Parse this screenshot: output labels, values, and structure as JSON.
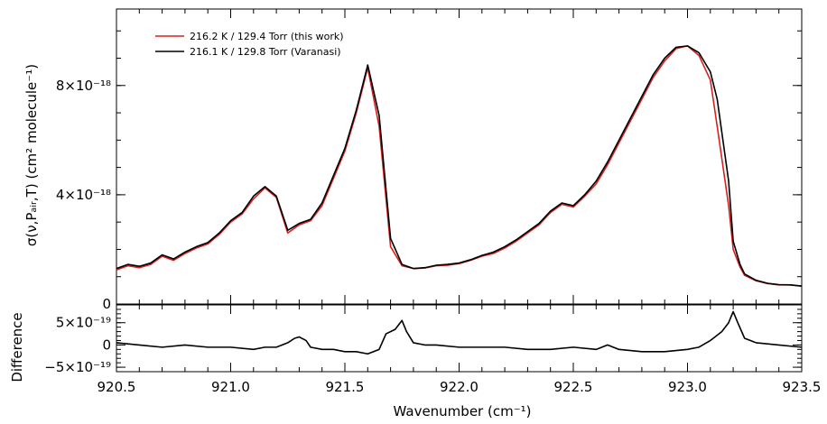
{
  "chart_data": [
    {
      "type": "line",
      "xlabel": "",
      "ylabel": "σ(ν,Pₐᵢᵣ,T)  (cm² molecule⁻¹)",
      "xlim": [
        920.5,
        923.5
      ],
      "ylim": [
        0,
        1.08e-17
      ],
      "yticks": [
        {
          "value": 0,
          "label": "0"
        },
        {
          "value": 4e-18,
          "label": "4×10⁻¹⁸"
        },
        {
          "value": 8e-18,
          "label": "8×10⁻¹⁸"
        }
      ],
      "legend_position": "top-left",
      "series": [
        {
          "name": "216.2 K / 129.4 Torr (this work)",
          "color": "#d62020",
          "x": [
            920.5,
            920.55,
            920.6,
            920.65,
            920.7,
            920.75,
            920.8,
            920.85,
            920.9,
            920.95,
            921.0,
            921.05,
            921.1,
            921.15,
            921.2,
            921.25,
            921.3,
            921.35,
            921.4,
            921.45,
            921.5,
            921.55,
            921.6,
            921.65,
            921.7,
            921.75,
            921.8,
            921.85,
            921.9,
            921.95,
            922.0,
            922.05,
            922.1,
            922.15,
            922.2,
            922.25,
            922.3,
            922.35,
            922.4,
            922.45,
            922.5,
            922.55,
            922.6,
            922.65,
            922.7,
            922.75,
            922.8,
            922.85,
            922.9,
            922.95,
            923.0,
            923.05,
            923.1,
            923.13,
            923.18,
            923.2,
            923.23,
            923.25,
            923.3,
            923.35,
            923.4,
            923.45,
            923.5
          ],
          "values": [
            1.25e-18,
            1.4e-18,
            1.33e-18,
            1.45e-18,
            1.75e-18,
            1.6e-18,
            1.85e-18,
            2.05e-18,
            2.2e-18,
            2.55e-18,
            3e-18,
            3.3e-18,
            3.85e-18,
            4.25e-18,
            3.9e-18,
            2.6e-18,
            2.9e-18,
            3.05e-18,
            3.6e-18,
            4.6e-18,
            5.6e-18,
            7e-18,
            8.65e-18,
            6.5e-18,
            2.1e-18,
            1.4e-18,
            1.3e-18,
            1.32e-18,
            1.4e-18,
            1.42e-18,
            1.48e-18,
            1.6e-18,
            1.75e-18,
            1.85e-18,
            2.05e-18,
            2.3e-18,
            2.6e-18,
            2.9e-18,
            3.35e-18,
            3.65e-18,
            3.55e-18,
            3.95e-18,
            4.4e-18,
            5.1e-18,
            5.9e-18,
            6.7e-18,
            7.5e-18,
            8.3e-18,
            8.9e-18,
            9.35e-18,
            9.45e-18,
            9.1e-18,
            8.2e-18,
            6.5e-18,
            3.6e-18,
            2e-18,
            1.35e-18,
            1.05e-18,
            8.5e-19,
            7.5e-19,
            7e-19,
            7e-19,
            6.5e-19
          ]
        },
        {
          "name": "216.1 K / 129.8 Torr (Varanasi)",
          "color": "#000000",
          "x": [
            920.5,
            920.55,
            920.6,
            920.65,
            920.7,
            920.75,
            920.8,
            920.85,
            920.9,
            920.95,
            921.0,
            921.05,
            921.1,
            921.15,
            921.2,
            921.25,
            921.3,
            921.35,
            921.4,
            921.45,
            921.5,
            921.55,
            921.6,
            921.65,
            921.7,
            921.75,
            921.8,
            921.85,
            921.9,
            921.95,
            922.0,
            922.05,
            922.1,
            922.15,
            922.2,
            922.25,
            922.3,
            922.35,
            922.4,
            922.45,
            922.5,
            922.55,
            922.6,
            922.65,
            922.7,
            922.75,
            922.8,
            922.85,
            922.9,
            922.95,
            923.0,
            923.05,
            923.1,
            923.13,
            923.18,
            923.2,
            923.23,
            923.25,
            923.3,
            923.35,
            923.4,
            923.45,
            923.5
          ],
          "values": [
            1.3e-18,
            1.45e-18,
            1.38e-18,
            1.5e-18,
            1.8e-18,
            1.65e-18,
            1.9e-18,
            2.1e-18,
            2.25e-18,
            2.6e-18,
            3.05e-18,
            3.35e-18,
            3.95e-18,
            4.3e-18,
            3.95e-18,
            2.7e-18,
            2.95e-18,
            3.1e-18,
            3.7e-18,
            4.7e-18,
            5.7e-18,
            7.1e-18,
            8.75e-18,
            6.9e-18,
            2.4e-18,
            1.45e-18,
            1.3e-18,
            1.33e-18,
            1.42e-18,
            1.45e-18,
            1.5e-18,
            1.62e-18,
            1.78e-18,
            1.9e-18,
            2.1e-18,
            2.35e-18,
            2.65e-18,
            2.95e-18,
            3.4e-18,
            3.7e-18,
            3.6e-18,
            4e-18,
            4.5e-18,
            5.2e-18,
            6e-18,
            6.8e-18,
            7.6e-18,
            8.4e-18,
            9e-18,
            9.4e-18,
            9.45e-18,
            9.2e-18,
            8.5e-18,
            7.5e-18,
            4.5e-18,
            2.3e-18,
            1.45e-18,
            1.1e-18,
            8.7e-19,
            7.6e-19,
            7.1e-19,
            7e-19,
            6.6e-19
          ]
        }
      ]
    },
    {
      "type": "line",
      "xlabel": "Wavenumber  (cm⁻¹)",
      "ylabel": "Difference",
      "xlim": [
        920.5,
        923.5
      ],
      "ylim": [
        -6e-19,
        9e-19
      ],
      "xticks": [
        {
          "value": 920.5,
          "label": "920.5"
        },
        {
          "value": 921.0,
          "label": "921.0"
        },
        {
          "value": 921.5,
          "label": "921.5"
        },
        {
          "value": 922.0,
          "label": "922.0"
        },
        {
          "value": 922.5,
          "label": "922.5"
        },
        {
          "value": 923.0,
          "label": "923.0"
        },
        {
          "value": 923.5,
          "label": "923.5"
        }
      ],
      "yticks": [
        {
          "value": 5e-19,
          "label": "5×10⁻¹⁹"
        },
        {
          "value": 0,
          "label": "0"
        },
        {
          "value": -5e-19,
          "label": "−5×10⁻¹⁹"
        }
      ],
      "series": [
        {
          "color": "#000000",
          "x": [
            920.5,
            920.6,
            920.7,
            920.8,
            920.9,
            921.0,
            921.1,
            921.15,
            921.2,
            921.25,
            921.28,
            921.3,
            921.33,
            921.35,
            921.4,
            921.45,
            921.5,
            921.55,
            921.6,
            921.65,
            921.68,
            921.72,
            921.75,
            921.77,
            921.8,
            921.85,
            921.9,
            922.0,
            922.1,
            922.2,
            922.3,
            922.4,
            922.5,
            922.6,
            922.65,
            922.7,
            922.8,
            922.9,
            923.0,
            923.05,
            923.1,
            923.15,
            923.18,
            923.2,
            923.22,
            923.25,
            923.3,
            923.4,
            923.5
          ],
          "values": [
            5e-20,
            0,
            -5e-20,
            0,
            -5e-20,
            -5e-20,
            -1e-19,
            -5e-20,
            -5e-20,
            5e-20,
            1.5e-19,
            1.8e-19,
            1e-19,
            -5e-20,
            -1e-19,
            -1e-19,
            -1.5e-19,
            -1.5e-19,
            -2e-19,
            -1e-19,
            2.5e-19,
            3.5e-19,
            5.5e-19,
            3e-19,
            5e-20,
            0,
            0,
            -5e-20,
            -5e-20,
            -5e-20,
            -1e-19,
            -1e-19,
            -5e-20,
            -1e-19,
            0,
            -1e-19,
            -1.5e-19,
            -1.5e-19,
            -1e-19,
            -5e-20,
            1e-19,
            3e-19,
            5e-19,
            7.5e-19,
            5e-19,
            1.5e-19,
            5e-20,
            0,
            -5e-20
          ]
        }
      ]
    }
  ]
}
